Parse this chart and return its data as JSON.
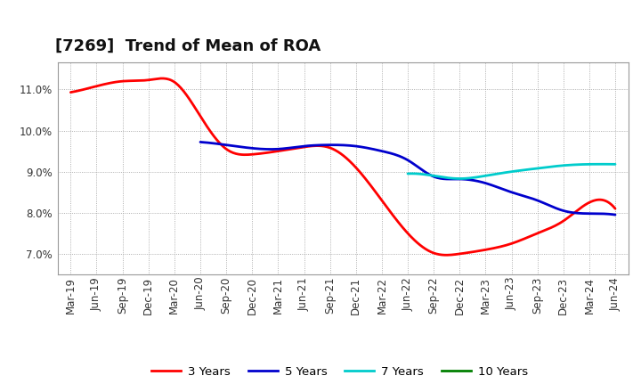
{
  "title": "[7269]  Trend of Mean of ROA",
  "x_labels": [
    "Mar-19",
    "Jun-19",
    "Sep-19",
    "Dec-19",
    "Mar-20",
    "Jun-20",
    "Sep-20",
    "Dec-20",
    "Mar-21",
    "Jun-21",
    "Sep-21",
    "Dec-21",
    "Mar-22",
    "Jun-22",
    "Sep-22",
    "Dec-22",
    "Mar-23",
    "Jun-23",
    "Sep-23",
    "Dec-23",
    "Mar-24",
    "Jun-24"
  ],
  "y_ticks": [
    7.0,
    8.0,
    9.0,
    10.0,
    11.0
  ],
  "ylim": [
    6.5,
    11.65
  ],
  "series": {
    "3 Years": {
      "color": "#FF0000",
      "values": [
        10.93,
        11.08,
        11.2,
        11.23,
        11.18,
        10.35,
        9.55,
        9.42,
        9.5,
        9.6,
        9.58,
        9.1,
        8.3,
        7.5,
        7.02,
        7.0,
        7.1,
        7.25,
        7.5,
        7.8,
        8.25,
        8.1
      ]
    },
    "5 Years": {
      "color": "#0000CD",
      "values": [
        null,
        null,
        null,
        null,
        null,
        9.72,
        9.65,
        9.57,
        9.55,
        9.62,
        9.65,
        9.62,
        9.5,
        9.28,
        8.88,
        8.82,
        8.72,
        8.5,
        8.3,
        8.05,
        7.98,
        7.95
      ]
    },
    "7 Years": {
      "color": "#00CCCC",
      "values": [
        null,
        null,
        null,
        null,
        null,
        null,
        null,
        null,
        null,
        null,
        null,
        null,
        null,
        8.95,
        8.9,
        8.83,
        8.9,
        9.0,
        9.08,
        9.15,
        9.18,
        9.18
      ]
    },
    "10 Years": {
      "color": "#008000",
      "values": [
        null,
        null,
        null,
        null,
        null,
        null,
        null,
        null,
        null,
        null,
        null,
        null,
        null,
        null,
        null,
        null,
        null,
        null,
        null,
        null,
        null,
        null
      ]
    }
  },
  "background_color": "#ffffff",
  "grid_color": "#999999",
  "title_fontsize": 13,
  "tick_fontsize": 8.5,
  "legend_fontsize": 9.5
}
